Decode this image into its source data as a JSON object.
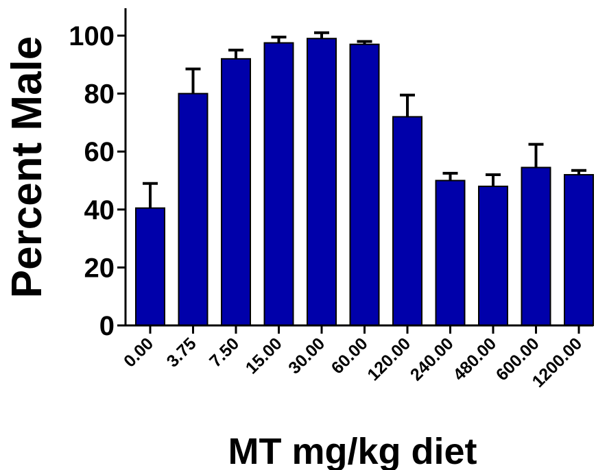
{
  "chart_data": {
    "type": "bar",
    "title": "",
    "xlabel": "MT mg/kg diet",
    "ylabel": "Percent Male",
    "categories": [
      "0.00",
      "3.75",
      "7.50",
      "15.00",
      "30.00",
      "60.00",
      "120.00",
      "240.00",
      "480.00",
      "600.00",
      "1200.00"
    ],
    "values": [
      40.5,
      80,
      92,
      97.5,
      99,
      97,
      72,
      50,
      48,
      54.5,
      52
    ],
    "error_upper": [
      49,
      88.5,
      95,
      99.5,
      101,
      98,
      79.5,
      52.5,
      52,
      62.5,
      53.5
    ],
    "ylim": [
      0,
      110
    ],
    "yticks": [
      0,
      20,
      40,
      60,
      80,
      100
    ],
    "grid": false,
    "legend": "none",
    "bar_color": "#0000aa",
    "bar_edge_color": "#000000"
  }
}
